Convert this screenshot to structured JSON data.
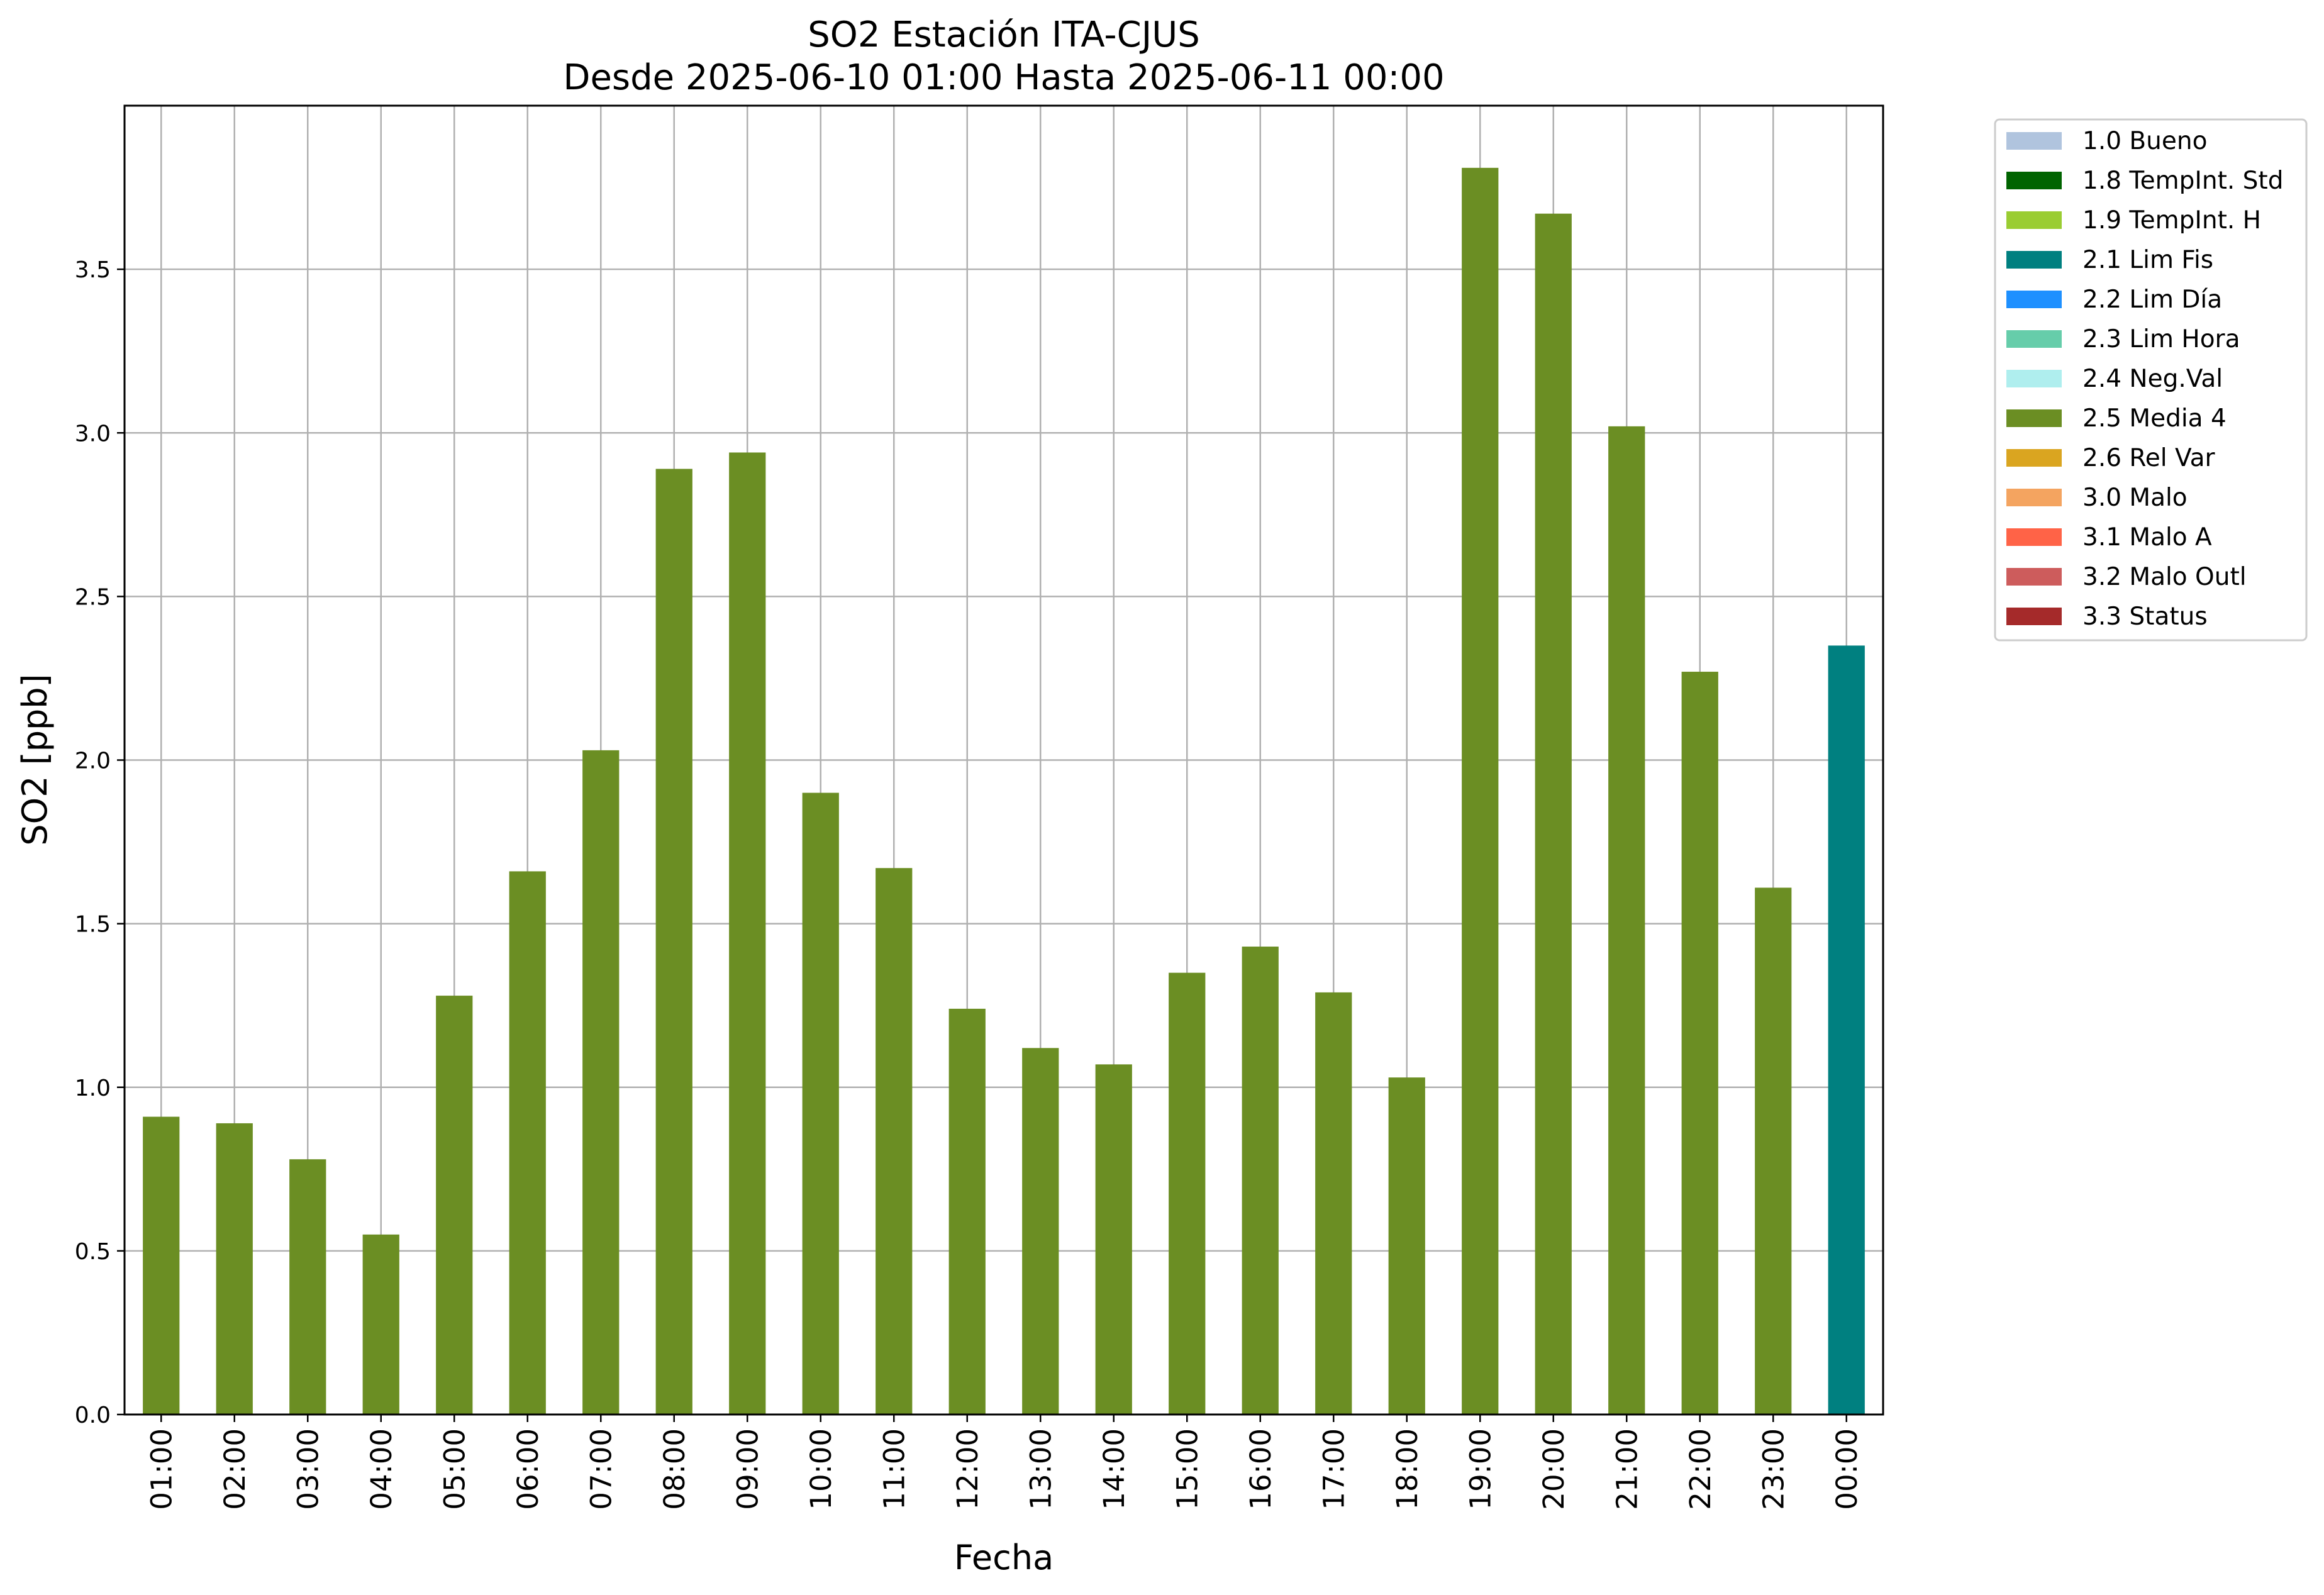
{
  "chart_data": {
    "type": "bar",
    "title": "SO2 Estación ITA-CJUS",
    "subtitle": "Desde 2025-06-10 01:00 Hasta 2025-06-11 00:00",
    "xlabel": "Fecha",
    "ylabel": "SO2 [ppb]",
    "ylim": [
      0,
      4.0
    ],
    "yticks": [
      "0.0",
      "0.5",
      "1.0",
      "1.5",
      "2.0",
      "2.5",
      "3.0",
      "3.5"
    ],
    "grid": true,
    "legend_position": "outside top-right",
    "categories": [
      "01:00",
      "02:00",
      "03:00",
      "04:00",
      "05:00",
      "06:00",
      "07:00",
      "08:00",
      "09:00",
      "10:00",
      "11:00",
      "12:00",
      "13:00",
      "14:00",
      "15:00",
      "16:00",
      "17:00",
      "18:00",
      "19:00",
      "20:00",
      "21:00",
      "22:00",
      "23:00",
      "00:00"
    ],
    "values": [
      0.91,
      0.89,
      0.78,
      0.55,
      1.28,
      1.66,
      2.03,
      2.89,
      2.94,
      1.9,
      1.67,
      1.24,
      1.12,
      1.07,
      1.35,
      1.43,
      1.29,
      1.03,
      3.81,
      3.67,
      3.02,
      2.27,
      1.61,
      2.35
    ],
    "flags": [
      "2.5 Media 4",
      "2.5 Media 4",
      "2.5 Media 4",
      "2.5 Media 4",
      "2.5 Media 4",
      "2.5 Media 4",
      "2.5 Media 4",
      "2.5 Media 4",
      "2.5 Media 4",
      "2.5 Media 4",
      "2.5 Media 4",
      "2.5 Media 4",
      "2.5 Media 4",
      "2.5 Media 4",
      "2.5 Media 4",
      "2.5 Media 4",
      "2.5 Media 4",
      "2.5 Media 4",
      "2.5 Media 4",
      "2.5 Media 4",
      "2.5 Media 4",
      "2.5 Media 4",
      "2.5 Media 4",
      "2.1 Lim Fis"
    ],
    "legend": [
      {
        "name": "1.0 Bueno",
        "color": "#b0c4de"
      },
      {
        "name": "1.8 TempInt. Std",
        "color": "#006400"
      },
      {
        "name": "1.9 TempInt. H",
        "color": "#9acd32"
      },
      {
        "name": "2.1 Lim Fis",
        "color": "#008080"
      },
      {
        "name": "2.2 Lim Día",
        "color": "#1e90ff"
      },
      {
        "name": "2.3 Lim Hora",
        "color": "#66cdaa"
      },
      {
        "name": "2.4 Neg.Val",
        "color": "#afeeee"
      },
      {
        "name": "2.5 Media 4",
        "color": "#6b8e23"
      },
      {
        "name": "2.6 Rel Var",
        "color": "#daa520"
      },
      {
        "name": "3.0 Malo",
        "color": "#f4a460"
      },
      {
        "name": "3.1 Malo A",
        "color": "#ff6347"
      },
      {
        "name": "3.2 Malo Outl",
        "color": "#cd5c5c"
      },
      {
        "name": "3.3 Status",
        "color": "#a52a2a"
      }
    ]
  }
}
